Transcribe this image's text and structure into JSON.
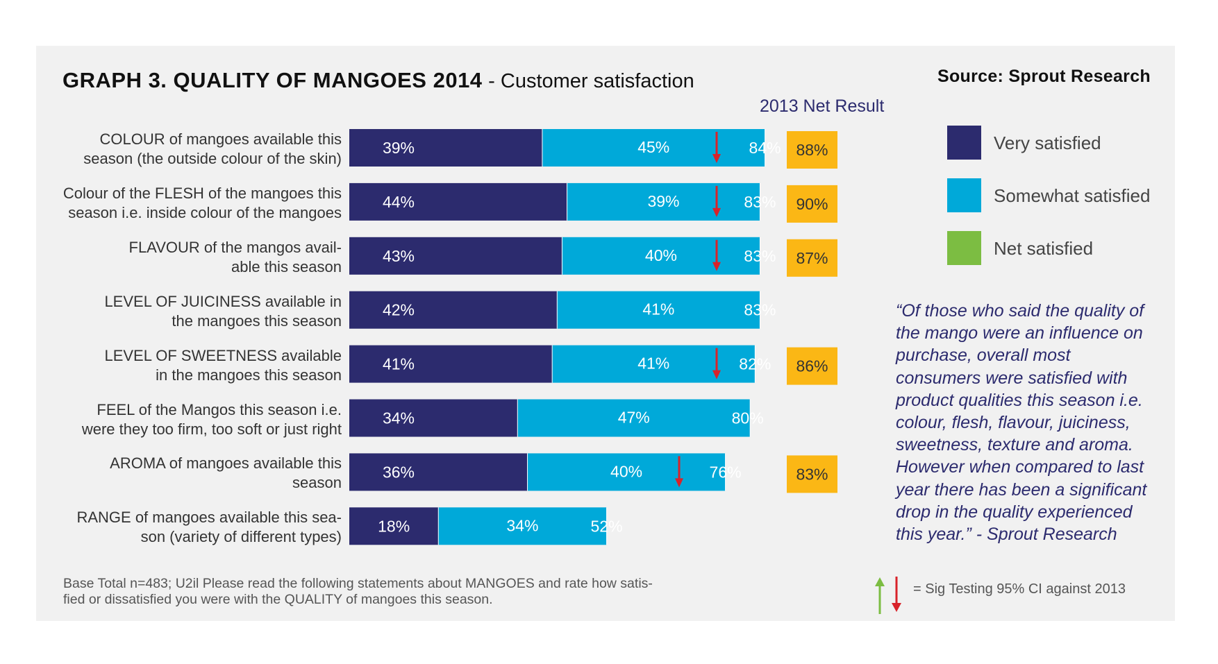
{
  "title": {
    "main": "GRAPH 3. QUALITY OF MANGOES 2014",
    "sub": "- Customer satisfaction"
  },
  "source": "Source: Sprout Research",
  "net2013_label": "2013 Net Result",
  "legend": [
    {
      "label": "Very satisfied",
      "color": "#2c2b6e"
    },
    {
      "label": "Somewhat satisfied",
      "color": "#00a9d9"
    },
    {
      "label": "Net satisfied",
      "color": "#7cbd42"
    }
  ],
  "colors": {
    "very": "#2c2b6e",
    "somewhat": "#00a9d9",
    "net": "#7cbd42",
    "badge": "#fbb715",
    "down_arrow": "#d8232a",
    "up_arrow": "#7cbd42"
  },
  "chart_data": {
    "type": "bar",
    "orientation": "horizontal",
    "title": "GRAPH 3. QUALITY OF MANGOES 2014 - Customer satisfaction",
    "categories": [
      "COLOUR of mangoes available this season (the outside colour of the skin)",
      "Colour of the FLESH of the mangoes this season i.e. inside colour of the mangoes",
      "FLAVOUR of the mangos available this season",
      "LEVEL OF JUICINESS available in the mangoes this season",
      "LEVEL OF SWEETNESS available in the mangoes this season",
      "FEEL of the Mangos this season i.e. were they too firm, too soft or just right",
      "AROMA of mangoes available this season",
      "RANGE of mangoes available this season (variety of different types)"
    ],
    "label_lines": [
      [
        "COLOUR of mangoes available this",
        "season (the outside colour of the skin)"
      ],
      [
        "Colour of the FLESH of the mangoes this",
        "season i.e. inside colour of the mangoes"
      ],
      [
        "FLAVOUR of the mangos avail-",
        "able this season"
      ],
      [
        "LEVEL OF JUICINESS available in",
        "the mangoes this season"
      ],
      [
        "LEVEL OF SWEETNESS available",
        "in the mangoes this season"
      ],
      [
        "FEEL of the Mangos this season i.e.",
        "were they too firm, too soft or just right"
      ],
      [
        "AROMA of mangoes available this",
        "season"
      ],
      [
        "RANGE of mangoes available this sea-",
        "son (variety of different types)"
      ]
    ],
    "series": [
      {
        "name": "Very satisfied",
        "values": [
          39,
          44,
          43,
          42,
          41,
          34,
          36,
          18
        ]
      },
      {
        "name": "Somewhat satisfied",
        "values": [
          45,
          39,
          40,
          41,
          41,
          47,
          40,
          34
        ]
      },
      {
        "name": "Net satisfied",
        "values": [
          84,
          83,
          83,
          83,
          82,
          80,
          76,
          52
        ]
      }
    ],
    "net_2013": [
      88,
      90,
      87,
      null,
      86,
      null,
      83,
      null
    ],
    "sig_drop": [
      true,
      true,
      true,
      false,
      true,
      false,
      true,
      false
    ],
    "unit": "%"
  },
  "quote": "“Of those who said the quality of the mango were an influence on purchase, overall most consumers were satisfied with product qualities this season i.e. colour, flesh, flavour, juiciness, sweetness, texture and aroma. However when compared to last year there has been a significant drop in the quality experienced this year.” - Sprout Research",
  "footnote": "Base Total n=483; U2il Please read the following statements about MANGOES and rate how satisfied or dissatisfied you were with the QUALITY of mangoes this season.",
  "footnote_lines": [
    "Base Total n=483; U2il Please read the following statements about MANGOES and rate how satis-",
    "fied or dissatisfied you were with the QUALITY of mangoes this season."
  ],
  "sig_legend": "= Sig Testing 95% CI against 2013"
}
